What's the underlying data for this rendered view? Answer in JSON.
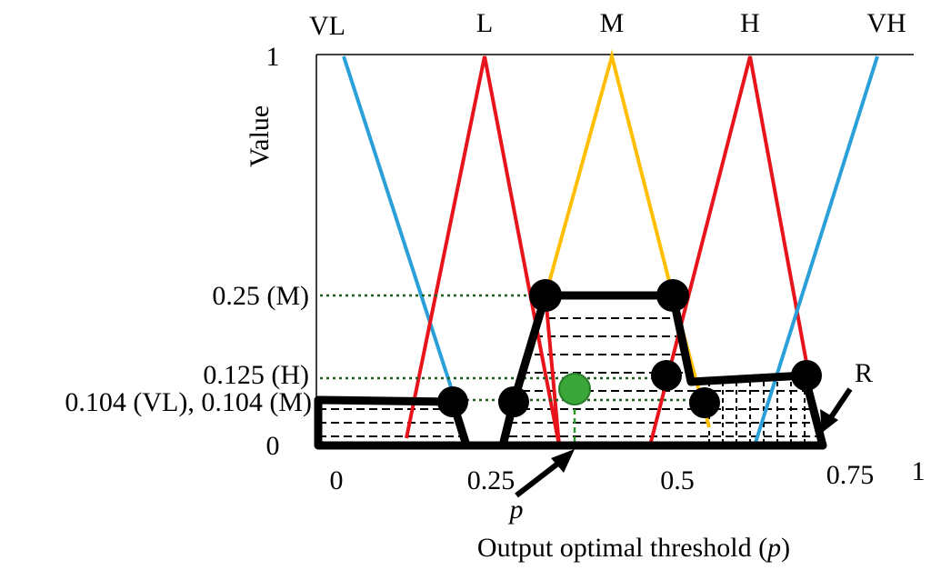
{
  "labels": {
    "sets": [
      "VL",
      "L",
      "M",
      "H",
      "VH"
    ],
    "y_axis": {
      "title": "Value",
      "top": "1",
      "bottom": "0",
      "levels": [
        "0.25 (M)",
        "0.125 (H)",
        "0.104 (VL), 0.104 (M)"
      ]
    },
    "x_axis": {
      "ticks": [
        "0",
        "0.25",
        "0.5",
        "0.75",
        "1"
      ],
      "title": "Output optimal threshold (",
      "title_var": "p",
      "title_end": ")"
    },
    "pointer_p": "p",
    "region": "R"
  }
}
